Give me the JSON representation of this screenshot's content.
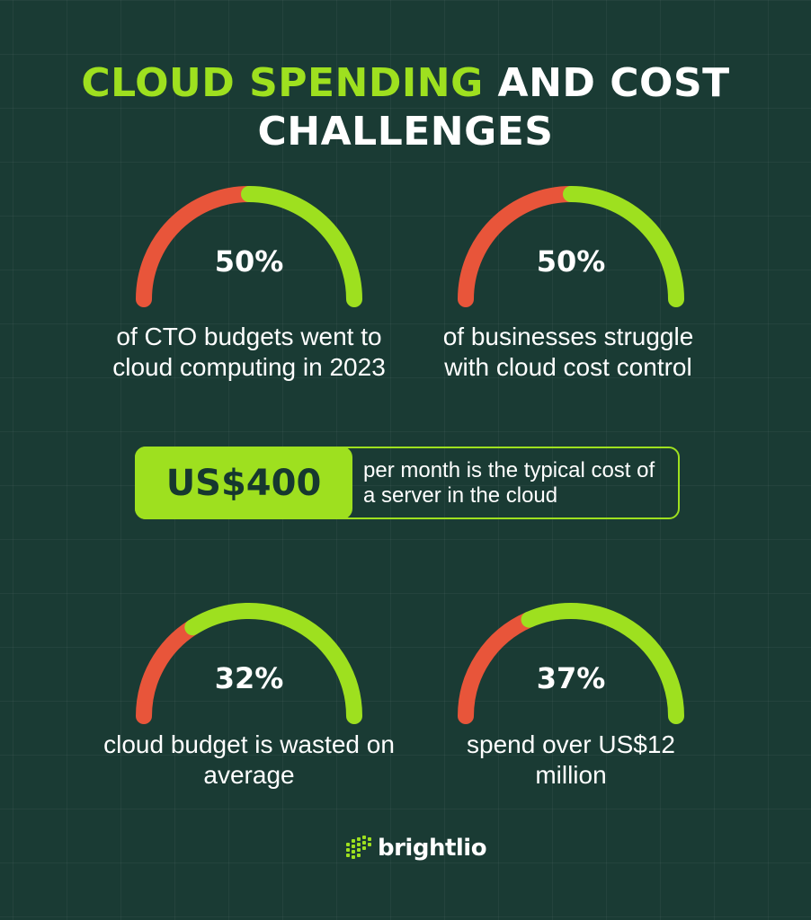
{
  "title": {
    "accent": "CLOUD SPENDING",
    "rest": "AND COST",
    "line2": "CHALLENGES"
  },
  "colors": {
    "accent": "#9ee01f",
    "warning": "#e8553a",
    "background": "#1a3b34"
  },
  "chart_data": [
    {
      "type": "gauge",
      "value": 50,
      "label": "50%",
      "caption": "of CTO budgets went to cloud computing in 2023"
    },
    {
      "type": "gauge",
      "value": 50,
      "label": "50%",
      "caption": "of businesses struggle with cloud cost control"
    },
    {
      "type": "gauge",
      "value": 32,
      "label": "32%",
      "caption": "cloud budget is wasted on average"
    },
    {
      "type": "gauge",
      "value": 37,
      "label": "37%",
      "caption": "spend over US$12 million"
    }
  ],
  "callout": {
    "amount": "US$400",
    "desc": "per month is the typical cost of a server in the cloud"
  },
  "brand": {
    "name": "brightlio",
    "icon": "brightlio-logo-icon"
  }
}
